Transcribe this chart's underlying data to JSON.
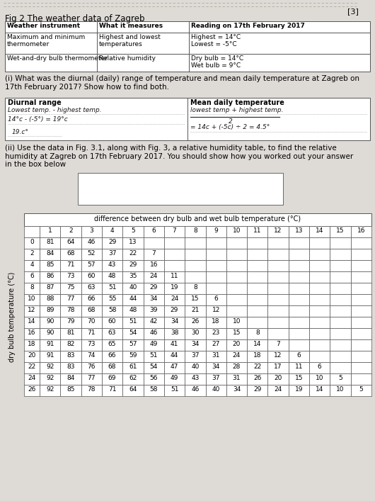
{
  "title_fig": "Fig 2 The weather data of Zagreb",
  "page_number": "[3]",
  "table1_headers": [
    "Weather instrument",
    "What it measures",
    "Reading on 17th February 2017"
  ],
  "table1_rows": [
    [
      "Maximum and minimum\nthermometer",
      "Highest and lowest\ntemperatures",
      "Highest = 14°C\nLowest = -5°C"
    ],
    [
      "Wet-and-dry bulb thermometer",
      "Relative humidity",
      "Dry bulb = 14°C\nWet bulb = 9°C"
    ]
  ],
  "question_i": "(i) What was the diurnal (daily) range of temperature and mean daily temperature at Zagreb on\n17th February 2017? Show how to find both.",
  "diurnal_label": "Diurnal range",
  "diurnal_hw1": "Lowest temp. - highest temp.",
  "diurnal_hw2": "14°c - (-5°) = 19°c",
  "diurnal_hw3": "19.c°",
  "mean_label": "Mean daily temperature",
  "mean_hw1": "lowest temp + highest temp.",
  "mean_hw2": "2",
  "mean_hw3": "= 14c + (-5c) ÷ 2 = 4.5°",
  "question_ii": "(ii) Use the data in Fig. 3.1, along with Fig. 3, a relative humidity table, to find the relative\nhumidity at Zagreb on 17th February 2017. You should show how you worked out your answer\nin the box below",
  "table2_title": "difference between dry bulb and wet bulb temperature (°C)",
  "table2_col_headers": [
    "",
    "1",
    "2",
    "3",
    "4",
    "5",
    "6",
    "7",
    "8",
    "9",
    "10",
    "11",
    "12",
    "13",
    "14",
    "15",
    "16"
  ],
  "table2_row_labels": [
    "0",
    "2",
    "4",
    "6",
    "8",
    "10",
    "12",
    "14",
    "16",
    "18",
    "20",
    "22",
    "24",
    "26"
  ],
  "table2_data": [
    [
      81,
      64,
      46,
      29,
      13,
      null,
      null,
      null,
      null,
      null,
      null,
      null,
      null,
      null,
      null,
      null
    ],
    [
      84,
      68,
      52,
      37,
      22,
      7,
      null,
      null,
      null,
      null,
      null,
      null,
      null,
      null,
      null,
      null
    ],
    [
      85,
      71,
      57,
      43,
      29,
      16,
      null,
      null,
      null,
      null,
      null,
      null,
      null,
      null,
      null,
      null
    ],
    [
      86,
      73,
      60,
      48,
      35,
      24,
      11,
      null,
      null,
      null,
      null,
      null,
      null,
      null,
      null,
      null
    ],
    [
      87,
      75,
      63,
      51,
      40,
      29,
      19,
      8,
      null,
      null,
      null,
      null,
      null,
      null,
      null,
      null
    ],
    [
      88,
      77,
      66,
      55,
      44,
      34,
      24,
      15,
      6,
      null,
      null,
      null,
      null,
      null,
      null,
      null
    ],
    [
      89,
      78,
      68,
      58,
      48,
      39,
      29,
      21,
      12,
      null,
      null,
      null,
      null,
      null,
      null,
      null
    ],
    [
      90,
      79,
      70,
      60,
      51,
      42,
      34,
      26,
      18,
      10,
      null,
      null,
      null,
      null,
      null,
      null
    ],
    [
      90,
      81,
      71,
      63,
      54,
      46,
      38,
      30,
      23,
      15,
      8,
      null,
      null,
      null,
      null,
      null
    ],
    [
      91,
      82,
      73,
      65,
      57,
      49,
      41,
      34,
      27,
      20,
      14,
      7,
      null,
      null,
      null,
      null
    ],
    [
      91,
      83,
      74,
      66,
      59,
      51,
      44,
      37,
      31,
      24,
      18,
      12,
      6,
      null,
      null,
      null
    ],
    [
      92,
      83,
      76,
      68,
      61,
      54,
      47,
      40,
      34,
      28,
      22,
      17,
      11,
      6,
      null,
      null
    ],
    [
      92,
      84,
      77,
      69,
      62,
      56,
      49,
      43,
      37,
      31,
      26,
      20,
      15,
      10,
      5,
      null
    ],
    [
      92,
      85,
      78,
      71,
      64,
      58,
      51,
      46,
      40,
      34,
      29,
      24,
      19,
      14,
      10,
      5
    ]
  ],
  "ylabel_table2": "dry bulb temperature (°C)",
  "bg_color": "#dedad6",
  "white": "#ffffff"
}
